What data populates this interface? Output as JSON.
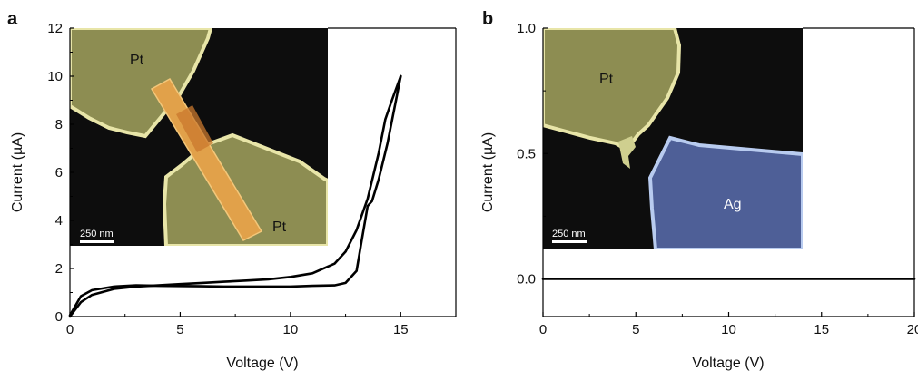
{
  "chart_data": [
    {
      "panel": "a",
      "type": "line",
      "xlabel": "Voltage (V)",
      "ylabel": "Current (µA)",
      "xlim": [
        0,
        17.5
      ],
      "ylim": [
        0,
        12
      ],
      "xticks": [
        0,
        5,
        10,
        15
      ],
      "yticks": [
        0,
        2,
        4,
        6,
        8,
        10,
        12
      ],
      "grid": false,
      "series": [
        {
          "x": [
            0,
            0.5,
            1,
            2,
            3,
            4,
            5,
            6,
            7,
            8,
            9,
            10,
            11,
            12,
            12.5,
            13,
            13.5,
            14,
            14.3,
            14.6,
            15
          ],
          "y": [
            0,
            0.6,
            0.9,
            1.15,
            1.25,
            1.3,
            1.35,
            1.4,
            1.45,
            1.5,
            1.55,
            1.65,
            1.8,
            2.2,
            2.7,
            3.6,
            4.9,
            6.8,
            8.2,
            9.0,
            10.0
          ]
        },
        {
          "x": [
            15,
            14.7,
            14.4,
            14.0,
            13.7,
            13.5,
            13.2,
            13.0,
            12.5,
            12,
            11,
            10,
            9,
            8,
            7,
            6,
            5,
            4,
            3,
            2,
            1,
            0.5,
            0
          ],
          "y": [
            10.0,
            8.6,
            7.2,
            5.7,
            4.8,
            4.6,
            3.0,
            1.9,
            1.4,
            1.3,
            1.28,
            1.25,
            1.25,
            1.25,
            1.25,
            1.26,
            1.27,
            1.28,
            1.3,
            1.25,
            1.1,
            0.85,
            0.05
          ]
        }
      ],
      "inset": {
        "labels": [
          "Pt",
          "Pt"
        ],
        "scalebar": "250 nm",
        "colors": {
          "electrode": "#8d8d52",
          "edge": "#e8e5a8",
          "wire": "#e3a044",
          "background": "#0d0d0d"
        }
      }
    },
    {
      "panel": "b",
      "type": "line",
      "xlabel": "Voltage (V)",
      "ylabel": "Current (µA)",
      "xlim": [
        0,
        20
      ],
      "ylim": [
        -0.15,
        1.0
      ],
      "xticks": [
        0,
        5,
        10,
        15,
        20
      ],
      "yticks": [
        0.0,
        0.5,
        1.0
      ],
      "yticklabels": [
        "0.0",
        "0.5",
        "1.0"
      ],
      "grid": false,
      "series": [
        {
          "x": [
            0,
            5,
            10,
            15,
            20
          ],
          "y": [
            0,
            0,
            0,
            0,
            0
          ]
        }
      ],
      "inset": {
        "labels": [
          "Pt",
          "Ag"
        ],
        "scalebar": "250 nm",
        "colors": {
          "electrode_pt": "#8d8d52",
          "electrode_ag": "#4e5f97",
          "edge_pt": "#e8e5a8",
          "edge_ag": "#b8cbef",
          "background": "#0d0d0d"
        }
      }
    }
  ]
}
